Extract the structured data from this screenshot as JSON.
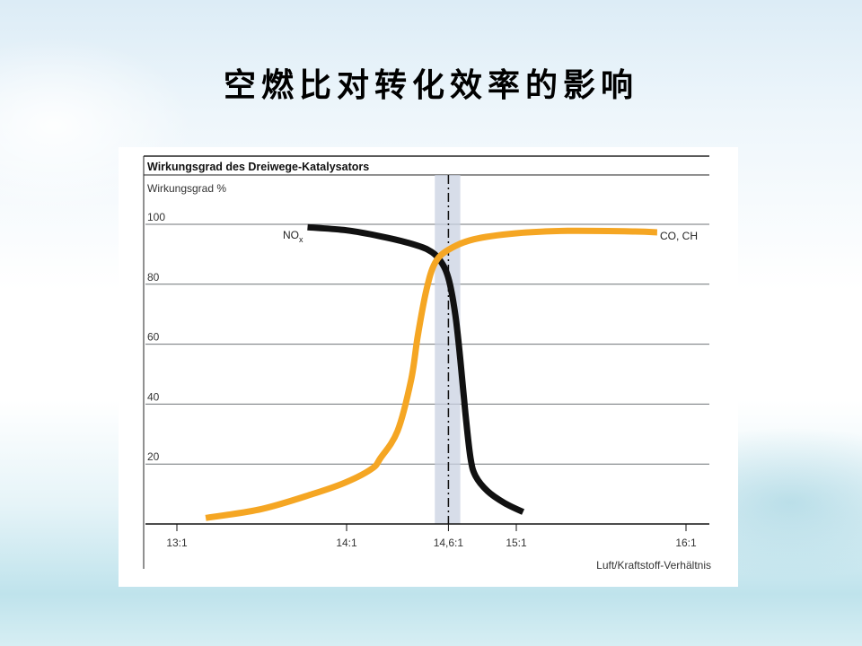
{
  "slide": {
    "title": "空燃比对转化效率的影响"
  },
  "chart_data": {
    "type": "line",
    "title": "Wirkungsgrad des Dreiwege-Katalysators",
    "ylabel": "Wirkungsgrad %",
    "xlabel": "Luft/Kraftstoff-Verhältnis",
    "xlim": [
      13.0,
      16.0
    ],
    "ylim": [
      0,
      100
    ],
    "x_ticks": [
      {
        "value": 13.0,
        "label": "13:1"
      },
      {
        "value": 14.0,
        "label": "14:1"
      },
      {
        "value": 14.6,
        "label": "14,6:1"
      },
      {
        "value": 15.0,
        "label": "15:1"
      },
      {
        "value": 16.0,
        "label": "16:1"
      }
    ],
    "y_ticks": [
      {
        "value": 20,
        "label": "20"
      },
      {
        "value": 40,
        "label": "40"
      },
      {
        "value": 60,
        "label": "60"
      },
      {
        "value": 80,
        "label": "80"
      },
      {
        "value": 100,
        "label": "100"
      }
    ],
    "stoichiometric_line": 14.6,
    "lambda_window": [
      14.52,
      14.67
    ],
    "grid": true,
    "series": [
      {
        "name": "NO",
        "name_sub": "x",
        "color": "#111111",
        "points": [
          [
            13.77,
            99
          ],
          [
            14.0,
            98
          ],
          [
            14.2,
            96
          ],
          [
            14.35,
            94
          ],
          [
            14.48,
            91.5
          ],
          [
            14.55,
            88
          ],
          [
            14.6,
            82
          ],
          [
            14.64,
            70
          ],
          [
            14.67,
            55
          ],
          [
            14.7,
            37
          ],
          [
            14.73,
            22
          ],
          [
            14.76,
            16
          ],
          [
            14.83,
            11
          ],
          [
            14.93,
            7
          ],
          [
            15.04,
            4
          ]
        ]
      },
      {
        "name": "CO, CH",
        "color": "#f5a623",
        "points": [
          [
            13.17,
            2
          ],
          [
            13.5,
            5
          ],
          [
            13.8,
            10
          ],
          [
            14.0,
            14
          ],
          [
            14.15,
            18.5
          ],
          [
            14.2,
            22
          ],
          [
            14.3,
            31
          ],
          [
            14.38,
            48
          ],
          [
            14.42,
            63
          ],
          [
            14.47,
            78
          ],
          [
            14.52,
            87
          ],
          [
            14.6,
            91.5
          ],
          [
            14.75,
            95
          ],
          [
            15.0,
            97
          ],
          [
            15.3,
            97.8
          ],
          [
            15.7,
            97.6
          ],
          [
            15.83,
            97.3
          ]
        ]
      }
    ]
  }
}
